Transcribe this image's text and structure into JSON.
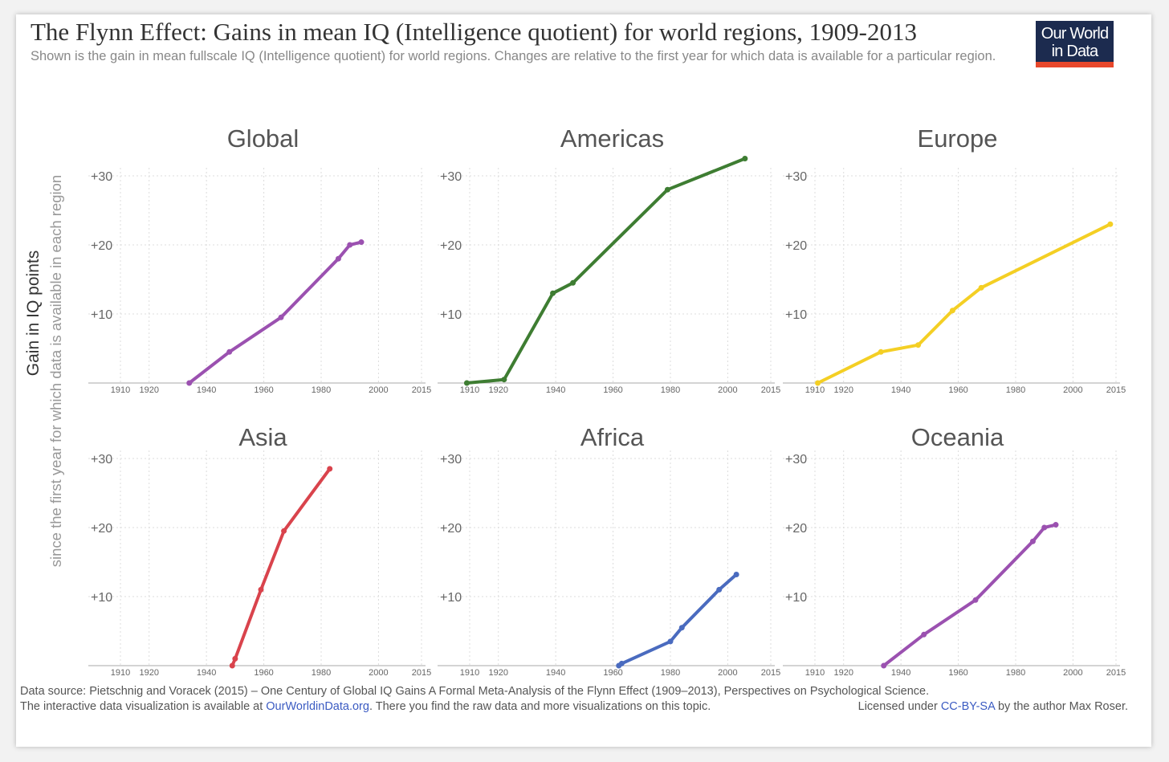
{
  "header": {
    "title": "The Flynn Effect: Gains in mean IQ (Intelligence quotient) for world regions, 1909-2013",
    "subtitle": "Shown is the gain in mean fullscale IQ (Intelligence quotient) for world regions. Changes are relative to the first year for which data is available for a particular region."
  },
  "logo": {
    "line1": "Our World",
    "line2": "in Data"
  },
  "yaxis_label": {
    "main": "Gain in IQ points",
    "sub": "since the first year for which data is available in each region"
  },
  "footer": {
    "source": "Data source: Pietschnig and Voracek (2015) – One Century of Global IQ Gains A Formal Meta-Analysis of the Flynn Effect (1909–2013), Perspectives on Psychological Science.",
    "interactive_prefix": "The interactive data visualization is available at ",
    "interactive_link": "OurWorldinData.org",
    "interactive_suffix": ". There you find the raw data and more visualizations on this topic.",
    "license_prefix": "Licensed under ",
    "license_link": "CC-BY-SA",
    "license_suffix": " by the author Max Roser."
  },
  "chart_data": [
    {
      "type": "line",
      "title": "Global",
      "color": "#9b51b0",
      "x": [
        1934,
        1948,
        1966,
        1986,
        1990,
        1994
      ],
      "y": [
        0,
        4.5,
        9.5,
        18,
        20,
        20.4
      ],
      "xticks": [
        1910,
        1920,
        1940,
        1960,
        1980,
        2000,
        2015
      ],
      "yticks": [
        "+10",
        "+20",
        "+30"
      ],
      "xlim": [
        1910,
        2015
      ],
      "ylim": [
        0,
        30
      ]
    },
    {
      "type": "line",
      "title": "Americas",
      "color": "#3e7d32",
      "x": [
        1909,
        1922,
        1939,
        1946,
        1979,
        2006
      ],
      "y": [
        0,
        0.5,
        13,
        14.5,
        28,
        32.5
      ],
      "xticks": [
        1910,
        1920,
        1940,
        1960,
        1980,
        2000,
        2015
      ],
      "yticks": [
        "+10",
        "+20",
        "+30"
      ],
      "xlim": [
        1910,
        2015
      ],
      "ylim": [
        0,
        30
      ]
    },
    {
      "type": "line",
      "title": "Europe",
      "color": "#f4cf24",
      "x": [
        1911,
        1933,
        1946,
        1958,
        1968,
        2013
      ],
      "y": [
        0,
        4.5,
        5.5,
        10.5,
        13.8,
        23
      ],
      "xticks": [
        1910,
        1920,
        1940,
        1960,
        1980,
        2000,
        2015
      ],
      "yticks": [
        "+10",
        "+20",
        "+30"
      ],
      "xlim": [
        1910,
        2015
      ],
      "ylim": [
        0,
        30
      ]
    },
    {
      "type": "line",
      "title": "Asia",
      "color": "#d9434c",
      "x": [
        1949,
        1950,
        1959,
        1967,
        1983
      ],
      "y": [
        0,
        1,
        11,
        19.5,
        28.5
      ],
      "xticks": [
        1910,
        1920,
        1940,
        1960,
        1980,
        2000,
        2015
      ],
      "yticks": [
        "+10",
        "+20",
        "+30"
      ],
      "xlim": [
        1910,
        2015
      ],
      "ylim": [
        0,
        30
      ]
    },
    {
      "type": "line",
      "title": "Africa",
      "color": "#4a6bbf",
      "x": [
        1962,
        1963,
        1980,
        1984,
        1997,
        2003
      ],
      "y": [
        0,
        0.3,
        3.5,
        5.5,
        11,
        13.2
      ],
      "xticks": [
        1910,
        1920,
        1940,
        1960,
        1980,
        2000,
        2015
      ],
      "yticks": [
        "+10",
        "+20",
        "+30"
      ],
      "xlim": [
        1910,
        2015
      ],
      "ylim": [
        0,
        30
      ]
    },
    {
      "type": "line",
      "title": "Oceania",
      "color": "#9b51b0",
      "x": [
        1934,
        1948,
        1966,
        1986,
        1990,
        1994
      ],
      "y": [
        0,
        4.5,
        9.5,
        18,
        20,
        20.4
      ],
      "xticks": [
        1910,
        1920,
        1940,
        1960,
        1980,
        2000,
        2015
      ],
      "yticks": [
        "+10",
        "+20",
        "+30"
      ],
      "xlim": [
        1910,
        2015
      ],
      "ylim": [
        0,
        30
      ]
    }
  ]
}
